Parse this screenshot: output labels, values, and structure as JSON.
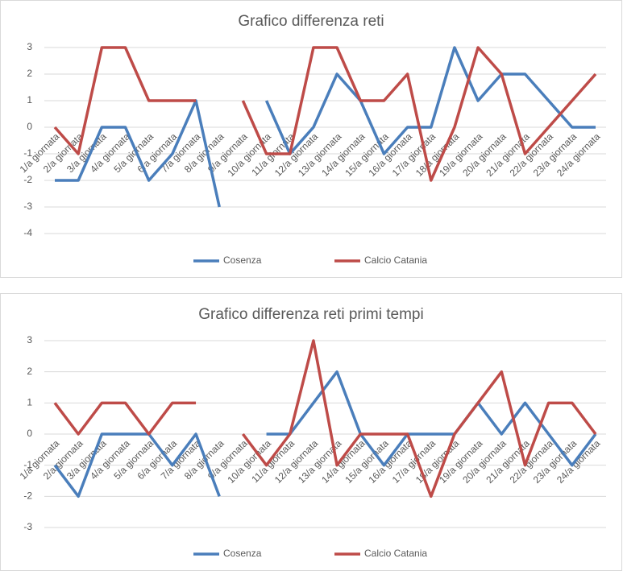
{
  "chart_data": [
    {
      "type": "line",
      "title": "Grafico differenza reti",
      "categories": [
        "1/a giornata",
        "2/a giornata",
        "3/a giornata",
        "4/a giornata",
        "5/a giornata",
        "6/a giornata",
        "7/a giornata",
        "8/a giornata",
        "9/a giornata",
        "10/a giornata",
        "11/a giornata",
        "12/a giornata",
        "13/a giornata",
        "14/a giornata",
        "15/a giornata",
        "16/a giornata",
        "17/a giornata",
        "18/a giornata",
        "19/a giornata",
        "20/a giornata",
        "21/a giornata",
        "22/a giornata",
        "23/a giornata",
        "24/a giornata"
      ],
      "series": [
        {
          "name": "Cosenza",
          "color": "#4a7ebb",
          "values": [
            -2,
            -2,
            0,
            0,
            -2,
            -1,
            1,
            -3,
            null,
            1,
            -1,
            0,
            2,
            1,
            -1,
            0,
            0,
            3,
            1,
            2,
            2,
            1,
            0,
            0
          ]
        },
        {
          "name": "Calcio Catania",
          "color": "#be4b48",
          "values": [
            0,
            -1,
            3,
            3,
            1,
            1,
            1,
            null,
            1,
            -1,
            -1,
            3,
            3,
            1,
            1,
            2,
            -2,
            0,
            3,
            2,
            -1,
            0,
            1,
            2
          ]
        }
      ],
      "ylim": [
        -4,
        3
      ],
      "yticks": [
        -4,
        -3,
        -2,
        -1,
        0,
        1,
        2,
        3
      ],
      "grid": true,
      "legend": "bottom"
    },
    {
      "type": "line",
      "title": "Grafico differenza reti primi tempi",
      "categories": [
        "1/a giornata",
        "2/a giornata",
        "3/a giornata",
        "4/a giornata",
        "5/a giornata",
        "6/a giornata",
        "7/a giornata",
        "8/a giornata",
        "9/a giornata",
        "10/a giornata",
        "11/a giornata",
        "12/a giornata",
        "13/a giornata",
        "14/a giornata",
        "15/a giornata",
        "16/a giornata",
        "17/a giornata",
        "18/a giornata",
        "19/a giornata",
        "20/a giornata",
        "21/a giornata",
        "22/a giornata",
        "23/a giornata",
        "24/a giornata"
      ],
      "series": [
        {
          "name": "Cosenza",
          "color": "#4a7ebb",
          "values": [
            -1,
            -2,
            0,
            0,
            0,
            -1,
            0,
            -2,
            null,
            0,
            0,
            1,
            2,
            0,
            -1,
            0,
            0,
            0,
            1,
            0,
            1,
            0,
            -1,
            0
          ]
        },
        {
          "name": "Calcio Catania",
          "color": "#be4b48",
          "values": [
            1,
            0,
            1,
            1,
            0,
            1,
            1,
            null,
            0,
            -1,
            0,
            3,
            -1,
            0,
            0,
            0,
            -2,
            0,
            1,
            2,
            -1,
            1,
            1,
            0
          ]
        }
      ],
      "ylim": [
        -3,
        3
      ],
      "yticks": [
        -3,
        -2,
        -1,
        0,
        1,
        2,
        3
      ],
      "grid": true,
      "legend": "bottom"
    }
  ]
}
